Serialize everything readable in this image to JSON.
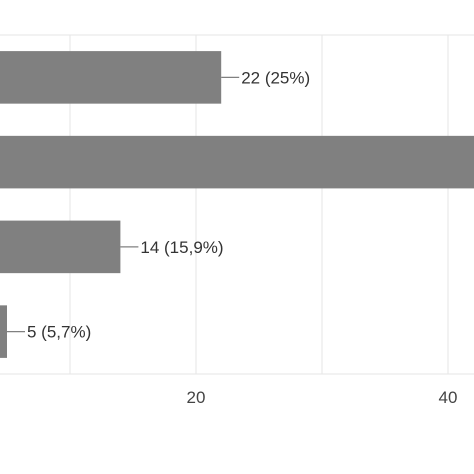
{
  "chart_data": {
    "type": "bar",
    "orientation": "horizontal",
    "categories": [
      "",
      "",
      "",
      ""
    ],
    "values": [
      22,
      47,
      14,
      5
    ],
    "data_labels": [
      "22 (25%)",
      "",
      "14 (15,9%)",
      "5 (5,7%)"
    ],
    "x_ticks": [
      {
        "value": 20,
        "label": "20"
      },
      {
        "value": 40,
        "label": "40"
      }
    ],
    "xlim": [
      0,
      47
    ],
    "grid": true,
    "bar_color": "#808080",
    "title": "",
    "xlabel": "",
    "ylabel": ""
  }
}
